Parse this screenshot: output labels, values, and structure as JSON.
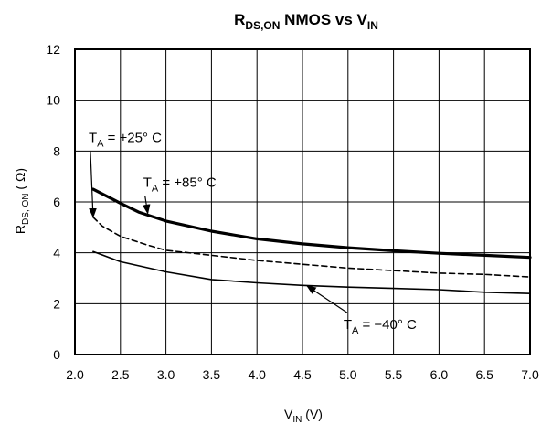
{
  "chart_data": {
    "type": "line",
    "title": {
      "main": "R",
      "sub": "DS,ON",
      "mid": " NMOS vs V",
      "end": "IN"
    },
    "xlabel": {
      "main": "V",
      "sub": "IN",
      "end": " (V)"
    },
    "ylabel": {
      "main": "R",
      "sub": "DS, ON",
      "end": " ( Ω)"
    },
    "xlim": [
      2.0,
      7.0
    ],
    "ylim": [
      0,
      12
    ],
    "x_ticks": [
      "2.0",
      "2.5",
      "3.0",
      "3.5",
      "4.0",
      "4.5",
      "5.0",
      "5.5",
      "6.0",
      "6.5",
      "7.0"
    ],
    "y_ticks": [
      "0",
      "2",
      "4",
      "6",
      "8",
      "10",
      "12"
    ],
    "grid": true,
    "series": [
      {
        "name": {
          "main": "T",
          "sub": "A",
          "end": " = +85° C"
        },
        "style": "thick",
        "x": [
          2.2,
          2.5,
          2.7,
          3.0,
          3.5,
          4.0,
          4.5,
          5.0,
          5.5,
          6.0,
          6.5,
          7.0
        ],
        "y": [
          6.5,
          5.95,
          5.6,
          5.25,
          4.85,
          4.55,
          4.35,
          4.2,
          4.08,
          3.98,
          3.9,
          3.82
        ]
      },
      {
        "name": {
          "main": "T",
          "sub": "A",
          "end": " = +25° C"
        },
        "style": "dashed",
        "x": [
          2.2,
          2.3,
          2.5,
          2.8,
          3.0,
          3.5,
          4.0,
          4.5,
          5.0,
          5.5,
          6.0,
          6.5,
          7.0
        ],
        "y": [
          5.4,
          5.05,
          4.65,
          4.3,
          4.1,
          3.9,
          3.7,
          3.55,
          3.4,
          3.3,
          3.2,
          3.15,
          3.05
        ]
      },
      {
        "name": {
          "main": "T",
          "sub": "A",
          "end": " = −40° C"
        },
        "style": "solid",
        "x": [
          2.2,
          2.5,
          3.0,
          3.5,
          4.0,
          4.5,
          5.0,
          5.5,
          6.0,
          6.5,
          7.0
        ],
        "y": [
          4.05,
          3.65,
          3.25,
          2.95,
          2.82,
          2.72,
          2.65,
          2.6,
          2.55,
          2.45,
          2.4
        ]
      }
    ],
    "annotations": [
      {
        "series": 1,
        "text_x": 2.15,
        "text_y": 8.35,
        "arrow_to_x": 2.2,
        "arrow_to_y": 5.4
      },
      {
        "series": 0,
        "text_x": 2.75,
        "text_y": 6.6,
        "arrow_to_x": 2.8,
        "arrow_to_y": 5.55
      },
      {
        "series": 2,
        "text_x": 4.95,
        "text_y": 1.0,
        "arrow_to_x": 4.55,
        "arrow_to_y": 2.7
      }
    ]
  }
}
